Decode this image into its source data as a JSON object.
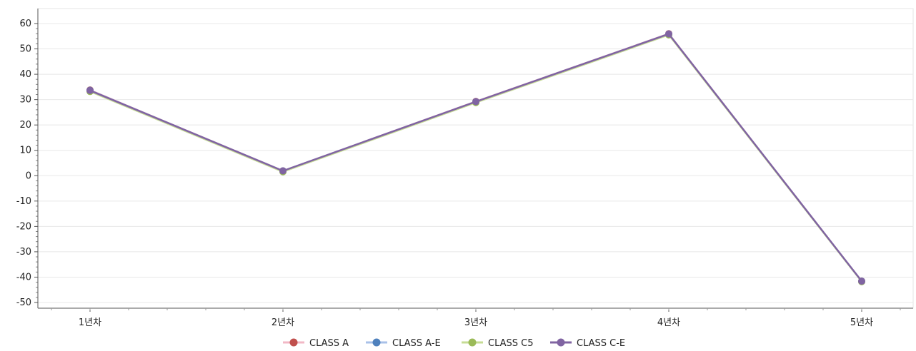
{
  "chart_data": {
    "type": "line",
    "title": "",
    "xlabel": "",
    "ylabel": "",
    "categories": [
      "1년차",
      "2년차",
      "3년차",
      "4년차",
      "5년차"
    ],
    "ylim": [
      -50,
      60
    ],
    "y_ticks": [
      60,
      50,
      40,
      30,
      20,
      10,
      0,
      -10,
      -20,
      -30,
      -40,
      -50
    ],
    "y_tick_labels": [
      "60",
      "50",
      "40",
      "30",
      "20",
      "10",
      "0",
      "-10",
      "-20",
      "-30",
      "-40",
      "-50"
    ],
    "grid": true,
    "legend_position": "bottom-center",
    "series": [
      {
        "name": "CLASS A",
        "color": "#c0504d",
        "line_color": "#f2b8c6",
        "values": [
          33.8,
          1.9,
          29.3,
          56.0,
          -41.6
        ]
      },
      {
        "name": "CLASS A-E",
        "color": "#4f81bd",
        "line_color": "#a9c1e8",
        "values": [
          33.7,
          1.9,
          29.2,
          55.9,
          -41.6
        ]
      },
      {
        "name": "CLASS C5",
        "color": "#9bbb59",
        "line_color": "#c6dc95",
        "values": [
          33.2,
          1.5,
          28.8,
          55.5,
          -41.8
        ]
      },
      {
        "name": "CLASS C-E",
        "color": "#8064a2",
        "line_color": "#8064a2",
        "values": [
          33.6,
          1.9,
          29.2,
          55.9,
          -41.6
        ]
      }
    ]
  }
}
